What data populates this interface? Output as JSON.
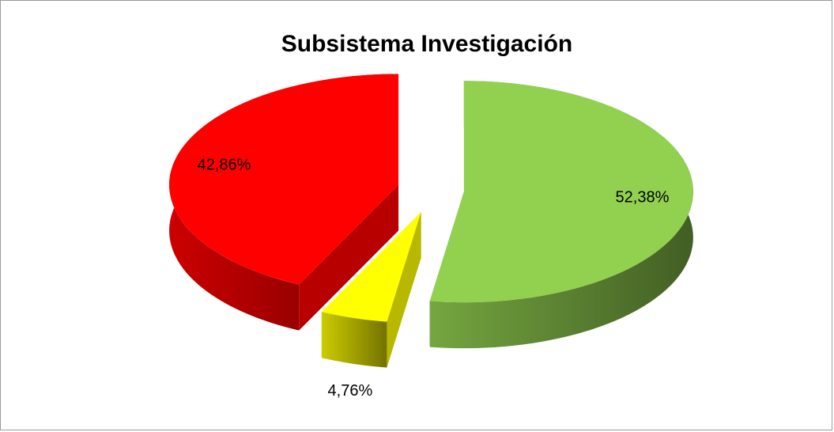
{
  "chart_data": {
    "type": "pie",
    "title": "Subsistema Investigación",
    "values": [
      52.38,
      4.76,
      42.86
    ],
    "value_labels": [
      "52,38%",
      "4,76%",
      "42,86%"
    ],
    "colors": [
      "#92d050",
      "#ffff00",
      "#ff0000"
    ]
  }
}
